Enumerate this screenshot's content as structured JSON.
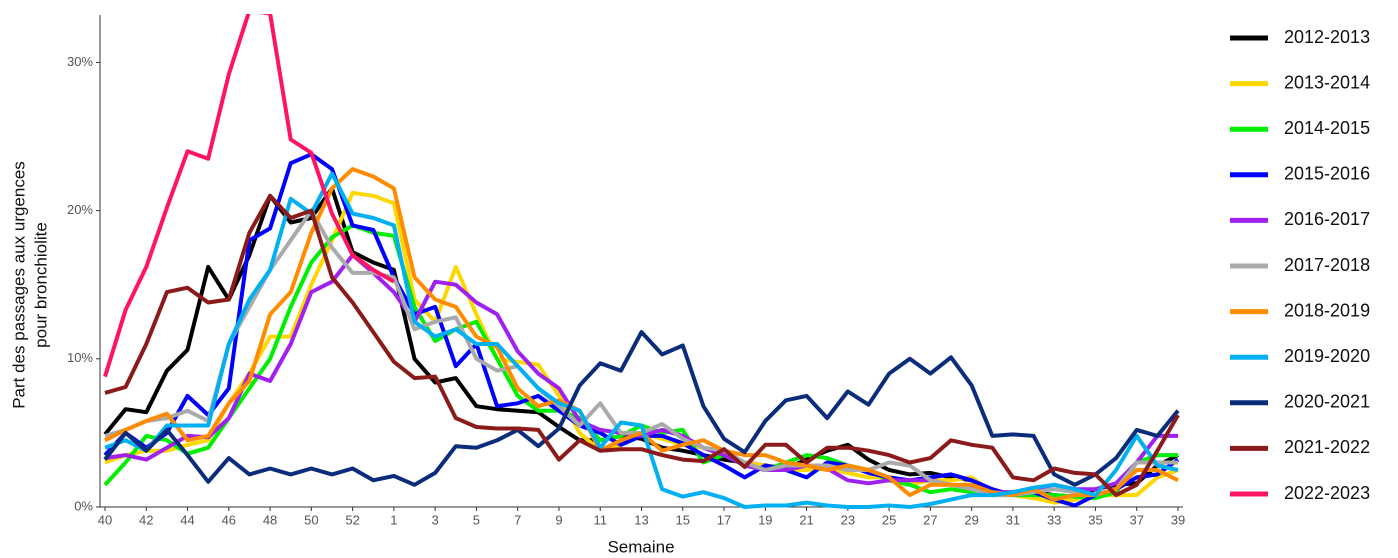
{
  "chart_data": {
    "type": "line",
    "xlabel": "Semaine",
    "ylabel": [
      "Part des passages aux urgences",
      "pour bronchiolite"
    ],
    "categories": [
      "40",
      null,
      "42",
      null,
      "44",
      null,
      "46",
      null,
      "48",
      null,
      "50",
      null,
      "52",
      null,
      "1",
      null,
      "3",
      null,
      "5",
      null,
      "7",
      null,
      "9",
      null,
      "11",
      null,
      "13",
      null,
      "15",
      null,
      "17",
      null,
      "19",
      null,
      "21",
      null,
      "23",
      null,
      "25",
      null,
      "27",
      null,
      "29",
      null,
      "31",
      null,
      "33",
      null,
      "35",
      null,
      "37",
      null,
      "39"
    ],
    "ylim": [
      0,
      33.2
    ],
    "yticks": [
      {
        "value": 0,
        "label": "0%"
      },
      {
        "value": 10,
        "label": "10%"
      },
      {
        "value": 20,
        "label": "20%"
      },
      {
        "value": 30,
        "label": "30%"
      }
    ],
    "grid": false,
    "legend": "right",
    "series": [
      {
        "name": "2012-2013",
        "color": "#000000",
        "values": [
          4.9,
          6.6,
          6.4,
          9.2,
          10.6,
          16.2,
          14.0,
          17.0,
          21.0,
          19.2,
          19.5,
          21.5,
          17.2,
          16.5,
          16.0,
          10.0,
          8.4,
          8.7,
          6.8,
          6.6,
          6.5,
          6.4,
          5.4,
          4.5,
          4.5,
          4.8,
          4.6,
          4.0,
          3.8,
          3.5,
          3.2,
          3.0,
          2.8,
          2.6,
          3.2,
          3.8,
          4.2,
          3.2,
          2.5,
          2.2,
          2.3,
          2.0,
          1.8,
          1.0,
          1.0,
          1.0,
          0.8,
          0.7,
          1.2,
          1.5,
          1.6,
          2.8,
          3.5
        ]
      },
      {
        "name": "2013-2014",
        "color": "#FFD700",
        "values": [
          3.0,
          3.5,
          3.8,
          3.8,
          4.2,
          4.5,
          7.0,
          9.0,
          11.5,
          11.5,
          15.0,
          18.0,
          21.2,
          21.0,
          20.5,
          14.0,
          12.5,
          16.2,
          13.0,
          10.0,
          9.8,
          9.6,
          7.5,
          5.0,
          3.8,
          4.2,
          5.0,
          4.6,
          4.2,
          4.0,
          3.5,
          3.0,
          2.8,
          2.5,
          2.5,
          2.6,
          2.3,
          2.0,
          2.0,
          1.5,
          1.8,
          1.8,
          2.0,
          1.0,
          0.8,
          0.6,
          0.3,
          0.5,
          0.8,
          0.8,
          0.8,
          2.0,
          2.5
        ]
      },
      {
        "name": "2014-2015",
        "color": "#00EE00",
        "values": [
          1.5,
          3.0,
          4.8,
          4.5,
          3.6,
          4.0,
          6.0,
          8.0,
          10.0,
          13.5,
          16.5,
          18.2,
          19.0,
          18.5,
          18.3,
          13.5,
          11.2,
          12.0,
          12.5,
          10.0,
          7.5,
          6.5,
          6.5,
          6.0,
          4.5,
          4.8,
          5.5,
          5.0,
          5.2,
          3.0,
          3.5,
          2.8,
          2.5,
          3.0,
          3.5,
          3.3,
          2.8,
          2.5,
          1.8,
          1.5,
          1.0,
          1.2,
          1.0,
          0.8,
          0.8,
          0.8,
          0.8,
          0.7,
          0.6,
          1.0,
          3.0,
          3.5,
          3.5
        ]
      },
      {
        "name": "2015-2016",
        "color": "#0000FF",
        "values": [
          3.5,
          5.0,
          4.0,
          5.0,
          7.5,
          6.2,
          8.0,
          18.0,
          18.8,
          23.2,
          23.8,
          22.8,
          19.0,
          18.7,
          15.5,
          13.0,
          13.5,
          9.5,
          11.0,
          6.8,
          7.0,
          7.5,
          6.5,
          5.5,
          5.0,
          4.2,
          4.8,
          4.8,
          4.3,
          3.5,
          2.8,
          2.0,
          2.8,
          2.5,
          2.0,
          3.0,
          2.8,
          2.3,
          2.0,
          1.8,
          2.0,
          2.2,
          1.8,
          1.2,
          0.8,
          1.0,
          0.5,
          0.1,
          0.8,
          1.2,
          2.0,
          2.2,
          3.2
        ]
      },
      {
        "name": "2016-2017",
        "color": "#A020F0",
        "values": [
          3.3,
          3.5,
          3.2,
          4.0,
          4.8,
          4.7,
          6.0,
          9.0,
          8.5,
          11.0,
          14.5,
          15.2,
          17.0,
          15.8,
          14.5,
          12.5,
          15.2,
          15.0,
          13.8,
          13.0,
          10.5,
          9.0,
          8.0,
          5.8,
          5.2,
          5.0,
          4.8,
          5.2,
          4.8,
          4.0,
          3.5,
          2.8,
          2.5,
          2.5,
          2.8,
          2.6,
          1.8,
          1.6,
          1.8,
          1.8,
          1.8,
          1.5,
          1.3,
          1.0,
          1.0,
          1.2,
          1.5,
          1.2,
          1.2,
          1.6,
          3.0,
          4.8,
          4.8
        ]
      },
      {
        "name": "2017-2018",
        "color": "#AAAAAA",
        "values": [
          4.8,
          5.2,
          5.8,
          6.0,
          6.5,
          5.8,
          11.0,
          13.5,
          16.0,
          18.0,
          20.0,
          17.5,
          15.8,
          15.8,
          15.5,
          12.0,
          12.5,
          12.8,
          10.0,
          9.2,
          9.5,
          8.0,
          6.8,
          5.5,
          7.0,
          5.0,
          5.0,
          5.6,
          4.6,
          4.0,
          3.8,
          3.0,
          2.5,
          2.8,
          2.8,
          2.8,
          2.5,
          2.5,
          3.0,
          2.8,
          1.8,
          1.5,
          1.2,
          0.8,
          0.8,
          1.0,
          1.2,
          1.0,
          0.8,
          1.2,
          3.0,
          3.0,
          3.0
        ]
      },
      {
        "name": "2018-2019",
        "color": "#FF8C00",
        "values": [
          4.5,
          5.2,
          5.8,
          6.3,
          4.5,
          4.8,
          7.0,
          8.5,
          13.0,
          14.5,
          18.5,
          21.5,
          22.8,
          22.3,
          21.5,
          15.5,
          14.0,
          13.5,
          11.5,
          10.8,
          8.0,
          6.8,
          7.2,
          6.5,
          3.8,
          4.5,
          5.0,
          3.8,
          4.2,
          4.5,
          3.8,
          3.5,
          3.5,
          3.0,
          2.8,
          2.5,
          2.8,
          2.5,
          2.0,
          0.8,
          1.5,
          1.5,
          1.5,
          1.0,
          0.8,
          1.2,
          0.5,
          0.8,
          0.8,
          1.2,
          2.5,
          2.5,
          1.8
        ]
      },
      {
        "name": "2019-2020",
        "color": "#00B0F0",
        "values": [
          4.0,
          4.5,
          3.8,
          5.5,
          5.5,
          5.5,
          11.0,
          14.0,
          16.0,
          20.8,
          19.8,
          22.5,
          19.8,
          19.5,
          19.0,
          12.5,
          11.5,
          12.0,
          11.0,
          11.0,
          9.5,
          8.0,
          7.0,
          6.5,
          4.0,
          5.7,
          5.5,
          1.2,
          0.7,
          1.0,
          0.6,
          0,
          0.1,
          0.1,
          0.3,
          0.1,
          0,
          0,
          0.1,
          0,
          0.2,
          0.5,
          0.8,
          0.8,
          1.0,
          1.3,
          1.5,
          1.2,
          0.8,
          2.5,
          4.8,
          2.8,
          2.5
        ]
      },
      {
        "name": "2020-2021",
        "color": "#0A2C7A",
        "values": [
          3.2,
          5.0,
          3.8,
          5.2,
          3.5,
          1.7,
          3.3,
          2.2,
          2.6,
          2.2,
          2.6,
          2.2,
          2.6,
          1.8,
          2.1,
          1.5,
          2.3,
          4.1,
          4.0,
          4.5,
          5.2,
          4.1,
          5.3,
          8.2,
          9.7,
          9.2,
          11.8,
          10.3,
          10.9,
          6.8,
          4.6,
          3.7,
          5.8,
          7.2,
          7.5,
          6.0,
          7.8,
          6.9,
          9.0,
          10.0,
          9.0,
          10.1,
          8.2,
          4.8,
          4.9,
          4.8,
          2.2,
          1.5,
          2.2,
          3.3,
          5.2,
          4.8,
          6.5
        ]
      },
      {
        "name": "2021-2022",
        "color": "#8B1A1A",
        "values": [
          7.7,
          8.1,
          11.0,
          14.5,
          14.8,
          13.8,
          14.0,
          18.5,
          21.0,
          19.5,
          20.0,
          15.5,
          13.8,
          11.8,
          9.8,
          8.7,
          8.8,
          6.0,
          5.4,
          5.3,
          5.3,
          5.2,
          3.2,
          4.5,
          3.8,
          3.9,
          3.9,
          3.5,
          3.2,
          3.1,
          3.9,
          2.7,
          4.2,
          4.2,
          3.0,
          4.0,
          4.0,
          3.8,
          3.5,
          3.0,
          3.3,
          4.5,
          4.2,
          4.0,
          2.0,
          1.8,
          2.6,
          2.3,
          2.2,
          0.8,
          1.5,
          3.8,
          6.2
        ]
      },
      {
        "name": "2022-2023",
        "color": "#FF1465",
        "values": [
          8.8,
          13.3,
          16.2,
          20.2,
          24.0,
          23.5,
          29.2,
          33.5,
          33.3,
          24.8,
          23.9,
          19.8,
          17.0,
          16.0,
          15.2,
          null,
          null,
          null,
          null,
          null,
          null,
          null,
          null,
          null,
          null,
          null,
          null,
          null,
          null,
          null,
          null,
          null,
          null,
          null,
          null,
          null,
          null,
          null,
          null,
          null,
          null,
          null,
          null,
          null,
          null,
          null,
          null,
          null,
          null,
          null,
          null,
          null,
          null
        ]
      }
    ]
  }
}
